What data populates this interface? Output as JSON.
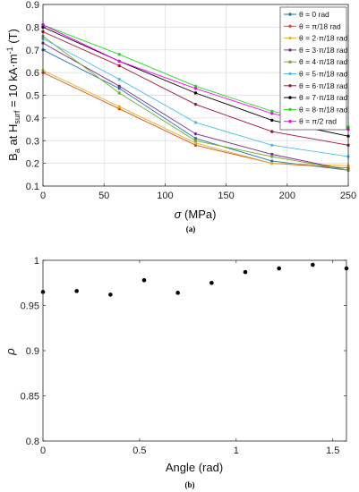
{
  "chart_data": [
    {
      "type": "line",
      "caption": "(a)",
      "ylabel_prefix": "B",
      "ylabel_sub_a": "a",
      "ylabel_mid": " at H",
      "ylabel_sub_surf": "surf",
      "ylabel_suffix": " = 10 kA·m",
      "ylabel_sup": "-1",
      "ylabel_unit": " (T)",
      "xlabel_symbol": "σ",
      "xlabel_unit": " (MPa)",
      "xlim": [
        0,
        250
      ],
      "ylim": [
        0.1,
        0.9
      ],
      "xticks": [
        "0",
        "50",
        "100",
        "150",
        "200",
        "250"
      ],
      "yticks": [
        "0.1",
        "0.2",
        "0.3",
        "0.4",
        "0.5",
        "0.6",
        "0.7",
        "0.8",
        "0.9"
      ],
      "grid": true,
      "legend_position": "top-right",
      "x": [
        0,
        62.5,
        125,
        187.5,
        250
      ],
      "series": [
        {
          "name": "θ = 0 rad",
          "color": "#1f77b4",
          "values": [
            0.7,
            0.53,
            0.31,
            0.21,
            0.17
          ]
        },
        {
          "name": "θ = π/18 rad",
          "color": "#d95319",
          "values": [
            0.6,
            0.44,
            0.28,
            0.2,
            0.18
          ]
        },
        {
          "name": "θ = 2·π/18 rad",
          "color": "#edb120",
          "values": [
            0.61,
            0.45,
            0.29,
            0.2,
            0.19
          ]
        },
        {
          "name": "θ = 3·π/18 rad",
          "color": "#7e2f8e",
          "values": [
            0.73,
            0.54,
            0.33,
            0.24,
            0.17
          ]
        },
        {
          "name": "θ = 4·π/18 rad",
          "color": "#77ac30",
          "values": [
            0.76,
            0.51,
            0.3,
            0.23,
            0.17
          ]
        },
        {
          "name": "θ = 5·π/18 rad",
          "color": "#4dbeee",
          "values": [
            0.75,
            0.57,
            0.38,
            0.28,
            0.23
          ]
        },
        {
          "name": "θ = 6·π/18 rad",
          "color": "#a2142f",
          "values": [
            0.78,
            0.63,
            0.46,
            0.34,
            0.28
          ]
        },
        {
          "name": "θ = 7·π/18 rad",
          "color": "#000000",
          "values": [
            0.8,
            0.65,
            0.51,
            0.39,
            0.32
          ]
        },
        {
          "name": "θ = 8·π/18 rad",
          "color": "#22dd22",
          "values": [
            0.81,
            0.68,
            0.54,
            0.43,
            0.36
          ]
        },
        {
          "name": "θ = π/2 rad",
          "color": "#ff00ff",
          "values": [
            0.81,
            0.65,
            0.53,
            0.42,
            0.35
          ]
        }
      ]
    },
    {
      "type": "scatter",
      "caption": "(b)",
      "ylabel": "ρ",
      "xlabel": "Angle (rad)",
      "xlim": [
        0,
        1.5708
      ],
      "ylim": [
        0.8,
        1.0
      ],
      "xticks": [
        "0",
        "0.5",
        "1",
        "1.5"
      ],
      "xtick_values": [
        0,
        0.5,
        1,
        1.5
      ],
      "yticks": [
        "0.8",
        "0.85",
        "0.9",
        "0.95",
        "1"
      ],
      "grid": false,
      "series": [
        {
          "color": "#000000",
          "x": [
            0,
            0.1745,
            0.3491,
            0.5236,
            0.6981,
            0.8727,
            1.0472,
            1.2217,
            1.3963,
            1.5708
          ],
          "values": [
            0.965,
            0.966,
            0.962,
            0.978,
            0.964,
            0.975,
            0.987,
            0.991,
            0.995,
            0.991
          ]
        }
      ]
    }
  ]
}
